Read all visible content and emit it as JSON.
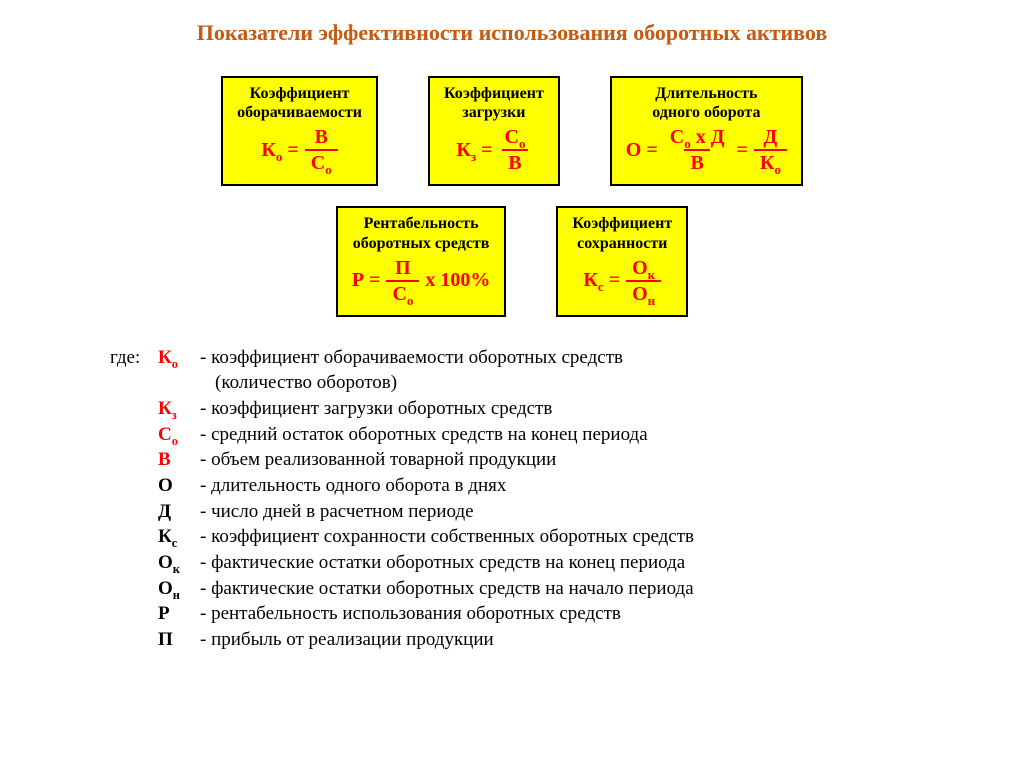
{
  "title_color": "#c55a11",
  "box_bg": "#ffff00",
  "formula_color": "#ff0000",
  "title": "Показатели эффективности использования оборотных активов",
  "boxes": {
    "ko": {
      "label1": "Коэффициент",
      "label2": "оборачиваемости",
      "lhs_main": "К",
      "lhs_sub": "о",
      "num_main": "В",
      "num_sub": "",
      "den_main": "С",
      "den_sub": "о"
    },
    "kz": {
      "label1": "Коэффициент",
      "label2": "загрузки",
      "lhs_main": "К",
      "lhs_sub": "з",
      "num_main": "С",
      "num_sub": "о",
      "den_main": "В",
      "den_sub": ""
    },
    "o": {
      "label1": "Длительность",
      "label2": "одного оборота",
      "lhs_main": "О",
      "num1_a": "С",
      "num1_a_sub": "о",
      "num1_mid": " х ",
      "num1_b": "Д",
      "den1": "В",
      "num2": "Д",
      "den2_main": "К",
      "den2_sub": "о"
    },
    "r": {
      "label1": "Рентабельность",
      "label2": "оборотных средств",
      "lhs_main": "Р",
      "num_main": "П",
      "den_main": "С",
      "den_sub": "о",
      "tail": " х 100%"
    },
    "ks": {
      "label1": "Коэффициент",
      "label2": "сохранности",
      "lhs_main": "К",
      "lhs_sub": "с",
      "num_main": "О",
      "num_sub": "к",
      "den_main": "О",
      "den_sub": "н"
    }
  },
  "legend": {
    "prefix": "где: ",
    "continuation": "(количество оборотов)",
    "items": [
      {
        "sym_main": "К",
        "sym_sub": "о",
        "color": "#ff0000",
        "text": " - коэффициент оборачиваемости оборотных средств"
      },
      {
        "sym_main": "К",
        "sym_sub": "з",
        "color": "#ff0000",
        "text": " - коэффициент загрузки оборотных средств"
      },
      {
        "sym_main": "С",
        "sym_sub": "о",
        "color": "#ff0000",
        "text": " - средний остаток оборотных средств на конец периода"
      },
      {
        "sym_main": "В",
        "sym_sub": "",
        "color": "#ff0000",
        "text": "  - объем реализованной товарной продукции"
      },
      {
        "sym_main": "О",
        "sym_sub": "",
        "color": "#000000",
        "text": "  - длительность одного оборота в днях"
      },
      {
        "sym_main": "Д",
        "sym_sub": "",
        "color": "#000000",
        "text": "  - число дней в расчетном периоде"
      },
      {
        "sym_main": "К",
        "sym_sub": "с",
        "color": "#000000",
        "text": " - коэффициент сохранности собственных оборотных средств"
      },
      {
        "sym_main": "О",
        "sym_sub": "к",
        "color": "#000000",
        "text": " - фактические остатки оборотных средств на конец периода"
      },
      {
        "sym_main": "О",
        "sym_sub": "н",
        "color": "#000000",
        "text": " - фактические остатки оборотных средств на начало периода"
      },
      {
        "sym_main": "Р",
        "sym_sub": "",
        "color": "#000000",
        "text": "  - рентабельность использования оборотных средств"
      },
      {
        "sym_main": "П",
        "sym_sub": "",
        "color": "#000000",
        "text": "  - прибыль от реализации продукции"
      }
    ]
  }
}
